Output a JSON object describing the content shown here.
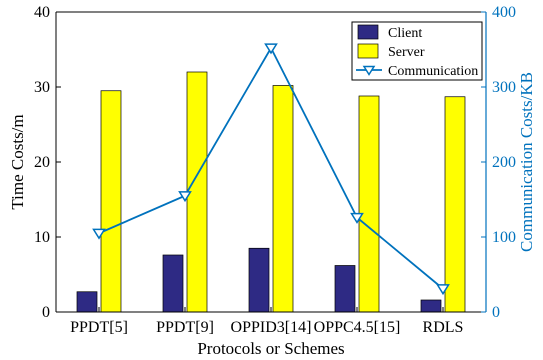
{
  "chart_data": {
    "type": "bar",
    "categories": [
      "PPDT[5]",
      "PPDT[9]",
      "OPPID3[14]",
      "OPPC4.5[15]",
      "RDLS"
    ],
    "xlabel": "Protocols or Schemes",
    "ylabel": "Time Costs/m",
    "ylabel_right": "Communication Costs/KB",
    "ylim": [
      0,
      40
    ],
    "ylim_right": [
      0,
      400
    ],
    "yticks": [
      0,
      10,
      20,
      30,
      40
    ],
    "yticks_right": [
      0,
      100,
      200,
      300,
      400
    ],
    "legend_position": "top-right",
    "grid": false,
    "series": [
      {
        "name": "Client",
        "type": "bar",
        "axis": "left",
        "color": "#2e2a84",
        "values": [
          2.7,
          7.6,
          8.5,
          6.2,
          1.6
        ]
      },
      {
        "name": "Server",
        "type": "bar",
        "axis": "left",
        "color": "#ffff00",
        "values": [
          29.5,
          32.0,
          30.2,
          28.8,
          28.7
        ]
      },
      {
        "name": "Communication",
        "type": "line",
        "axis": "right",
        "color": "#0072bd",
        "marker": "triangle-down",
        "values": [
          105,
          155,
          352,
          126,
          31
        ]
      }
    ]
  }
}
